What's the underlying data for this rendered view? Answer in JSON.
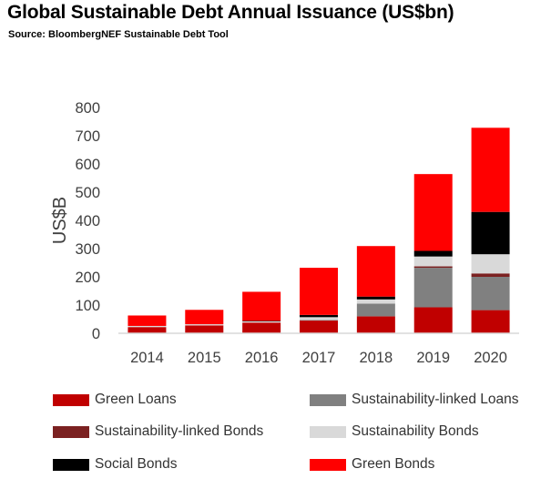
{
  "header": {
    "title": "Global Sustainable Debt Annual Issuance (US$bn)",
    "subtitle": "Source: BloombergNEF Sustainable Debt Tool"
  },
  "colors": {
    "green_loans": "#c00000",
    "sustainability_linked_loans": "#808080",
    "sustainability_linked_bonds": "#7b2121",
    "sustainability_bonds": "#d9d9d9",
    "social_bonds": "#000000",
    "green_bonds": "#ff0000"
  },
  "chart_data": {
    "type": "bar",
    "stacked": true,
    "categories": [
      "2014",
      "2015",
      "2016",
      "2017",
      "2018",
      "2019",
      "2020"
    ],
    "ylabel": "US$B",
    "ylim": [
      0,
      800
    ],
    "yticks": [
      0,
      100,
      200,
      300,
      400,
      500,
      600,
      700,
      800
    ],
    "grid": false,
    "legend_position": "bottom",
    "series": [
      {
        "name": "Green Loans",
        "color_key": "green_loans",
        "values": [
          22,
          28,
          38,
          45,
          60,
          92,
          82
        ]
      },
      {
        "name": "Sustainability-linked Loans",
        "color_key": "sustainability_linked_loans",
        "values": [
          0,
          0,
          0,
          2,
          45,
          140,
          118
        ]
      },
      {
        "name": "Sustainability-linked Bonds",
        "color_key": "sustainability_linked_bonds",
        "values": [
          0,
          0,
          0,
          0,
          0,
          5,
          12
        ]
      },
      {
        "name": "Sustainability Bonds",
        "color_key": "sustainability_bonds",
        "values": [
          4,
          4,
          4,
          10,
          15,
          35,
          68
        ]
      },
      {
        "name": "Social Bonds",
        "color_key": "social_bonds",
        "values": [
          0,
          0,
          2,
          8,
          10,
          20,
          150
        ]
      },
      {
        "name": "Green Bonds",
        "color_key": "green_bonds",
        "values": [
          37,
          51,
          103,
          167,
          179,
          272,
          298
        ]
      }
    ],
    "legend_order": [
      0,
      1,
      2,
      3,
      4,
      5
    ]
  }
}
